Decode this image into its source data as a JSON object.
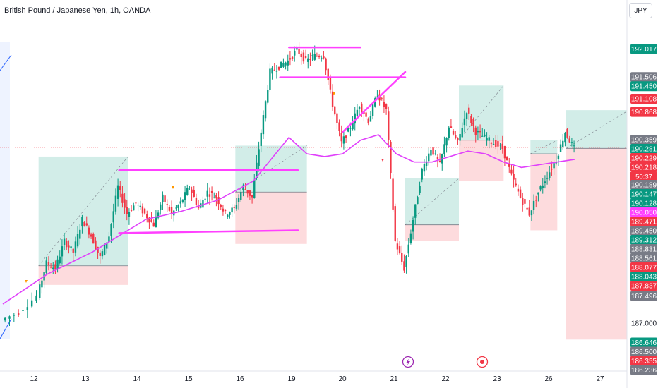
{
  "header": {
    "symbol_title": "British Pound / Japanese Yen, 1h, OANDA",
    "currency_button": "JPY"
  },
  "colors": {
    "up": "#089981",
    "down": "#f23645",
    "ma": "#e040fb",
    "drawing": "#ff40ff",
    "profit_zone": "rgba(8,153,129,0.18)",
    "loss_zone": "rgba(242,54,69,0.18)",
    "axis_text": "#131722",
    "label_gray": "#787b86",
    "trendline": "#2962ff"
  },
  "chart_data": {
    "type": "candlestick",
    "title": "British Pound / Japanese Yen, 1h, OANDA",
    "x_tick_labels": [
      "12",
      "13",
      "14",
      "15",
      "16",
      "19",
      "20",
      "21",
      "22",
      "23",
      "26",
      "27"
    ],
    "y_tick_labels": [
      "187.000"
    ],
    "last_price": 190.218,
    "countdown": "50:37",
    "price_labels": [
      {
        "value": 192.017,
        "kind": "up"
      },
      {
        "value": 191.506,
        "kind": "gray"
      },
      {
        "value": 191.45,
        "kind": "up"
      },
      {
        "value": 191.108,
        "kind": "down"
      },
      {
        "value": 190.868,
        "kind": "down"
      },
      {
        "value": 190.359,
        "kind": "gray"
      },
      {
        "value": 190.281,
        "kind": "up"
      },
      {
        "value": 190.229,
        "kind": "down"
      },
      {
        "value": 190.218,
        "kind": "down"
      },
      {
        "value": 190.189,
        "kind": "gray"
      },
      {
        "value": 190.147,
        "kind": "up"
      },
      {
        "value": 190.128,
        "kind": "up"
      },
      {
        "value": 190.05,
        "kind": "ma"
      },
      {
        "value": 189.471,
        "kind": "down"
      },
      {
        "value": 189.45,
        "kind": "gray"
      },
      {
        "value": 189.312,
        "kind": "up"
      },
      {
        "value": 188.831,
        "kind": "gray"
      },
      {
        "value": 188.561,
        "kind": "gray"
      },
      {
        "value": 188.077,
        "kind": "down"
      },
      {
        "value": 188.043,
        "kind": "up"
      },
      {
        "value": 187.837,
        "kind": "down"
      },
      {
        "value": 187.496,
        "kind": "gray"
      },
      {
        "value": 186.646,
        "kind": "up"
      },
      {
        "value": 186.5,
        "kind": "gray"
      },
      {
        "value": 186.355,
        "kind": "down"
      },
      {
        "value": 186.236,
        "kind": "gray"
      }
    ],
    "price_path": [
      [
        0,
        187.05
      ],
      [
        2,
        187.2
      ],
      [
        4,
        187.5
      ],
      [
        5,
        188.1
      ],
      [
        6,
        188.0
      ],
      [
        7,
        188.5
      ],
      [
        8,
        188.3
      ],
      [
        9,
        188.9
      ],
      [
        10,
        188.6
      ],
      [
        11,
        188.2
      ],
      [
        12,
        188.6
      ],
      [
        13,
        189.5
      ],
      [
        14,
        189.0
      ],
      [
        15,
        189.2
      ],
      [
        16,
        189.0
      ],
      [
        17,
        188.8
      ],
      [
        18,
        189.3
      ],
      [
        19,
        189.0
      ],
      [
        20,
        189.2
      ],
      [
        21,
        189.5
      ],
      [
        22,
        189.1
      ],
      [
        23,
        189.4
      ],
      [
        24,
        189.3
      ],
      [
        25,
        189.0
      ],
      [
        26,
        189.1
      ],
      [
        27,
        189.5
      ],
      [
        28,
        189.3
      ],
      [
        29,
        190.5
      ],
      [
        30,
        191.6
      ],
      [
        31,
        191.7
      ],
      [
        32,
        191.8
      ],
      [
        33,
        192.0
      ],
      [
        34,
        191.8
      ],
      [
        35,
        191.9
      ],
      [
        36,
        191.9
      ],
      [
        37,
        191.0
      ],
      [
        38,
        190.3
      ],
      [
        39,
        190.6
      ],
      [
        40,
        191.0
      ],
      [
        41,
        190.7
      ],
      [
        42,
        191.2
      ],
      [
        43,
        190.9
      ],
      [
        44,
        188.5
      ],
      [
        45,
        188.0
      ],
      [
        46,
        188.9
      ],
      [
        47,
        189.8
      ],
      [
        48,
        190.2
      ],
      [
        49,
        189.9
      ],
      [
        50,
        190.6
      ],
      [
        51,
        190.3
      ],
      [
        52,
        190.9
      ],
      [
        53,
        190.5
      ],
      [
        54,
        190.4
      ],
      [
        55,
        190.3
      ],
      [
        56,
        190.2
      ],
      [
        57,
        189.7
      ],
      [
        58,
        189.3
      ],
      [
        59,
        189.0
      ],
      [
        60,
        189.4
      ],
      [
        61,
        189.7
      ],
      [
        62,
        190.0
      ],
      [
        63,
        190.5
      ],
      [
        64,
        190.2
      ]
    ],
    "moving_average": [
      [
        0,
        187.35
      ],
      [
        5,
        187.9
      ],
      [
        10,
        188.3
      ],
      [
        13,
        188.6
      ],
      [
        16,
        188.9
      ],
      [
        20,
        189.05
      ],
      [
        24,
        189.25
      ],
      [
        28,
        189.6
      ],
      [
        30,
        190.0
      ],
      [
        32,
        190.4
      ],
      [
        34,
        190.1
      ],
      [
        36,
        190.05
      ],
      [
        38,
        190.1
      ],
      [
        40,
        190.35
      ],
      [
        42,
        190.45
      ],
      [
        44,
        190.1
      ],
      [
        46,
        189.95
      ],
      [
        48,
        189.95
      ],
      [
        50,
        190.05
      ],
      [
        52,
        190.15
      ],
      [
        54,
        190.1
      ],
      [
        56,
        189.95
      ],
      [
        58,
        189.85
      ],
      [
        60,
        189.9
      ],
      [
        62,
        189.95
      ],
      [
        64,
        190.0
      ]
    ],
    "positions": [
      {
        "side": "long",
        "from": 4,
        "to": 14,
        "entry": 188.05,
        "target": 190.05,
        "stop": 187.7
      },
      {
        "side": "long",
        "from": 26,
        "to": 34,
        "entry": 189.4,
        "target": 190.25,
        "stop": 188.45
      },
      {
        "side": "long",
        "from": 45,
        "to": 51,
        "entry": 188.8,
        "target": 189.65,
        "stop": 188.5
      },
      {
        "side": "short",
        "from": 51,
        "to": 56,
        "entry": 190.35,
        "target": 191.35,
        "stop": 189.6
      },
      {
        "side": "short",
        "from": 59,
        "to": 62,
        "entry": 190.1,
        "target": 190.35,
        "stop": 188.7
      },
      {
        "side": "short",
        "from": 63,
        "to": 70,
        "entry": 190.2,
        "target": 190.9,
        "stop": 186.7
      }
    ],
    "drawing_lines": [
      {
        "x1": 13,
        "y1": 189.8,
        "x2": 33,
        "y2": 189.8
      },
      {
        "x1": 13,
        "y1": 188.65,
        "x2": 33,
        "y2": 188.7
      },
      {
        "x1": 32,
        "y1": 192.05,
        "x2": 40,
        "y2": 192.05
      },
      {
        "x1": 31,
        "y1": 191.5,
        "x2": 45,
        "y2": 191.5
      },
      {
        "x1": 38,
        "y1": 190.5,
        "x2": 45,
        "y2": 191.6
      }
    ]
  }
}
